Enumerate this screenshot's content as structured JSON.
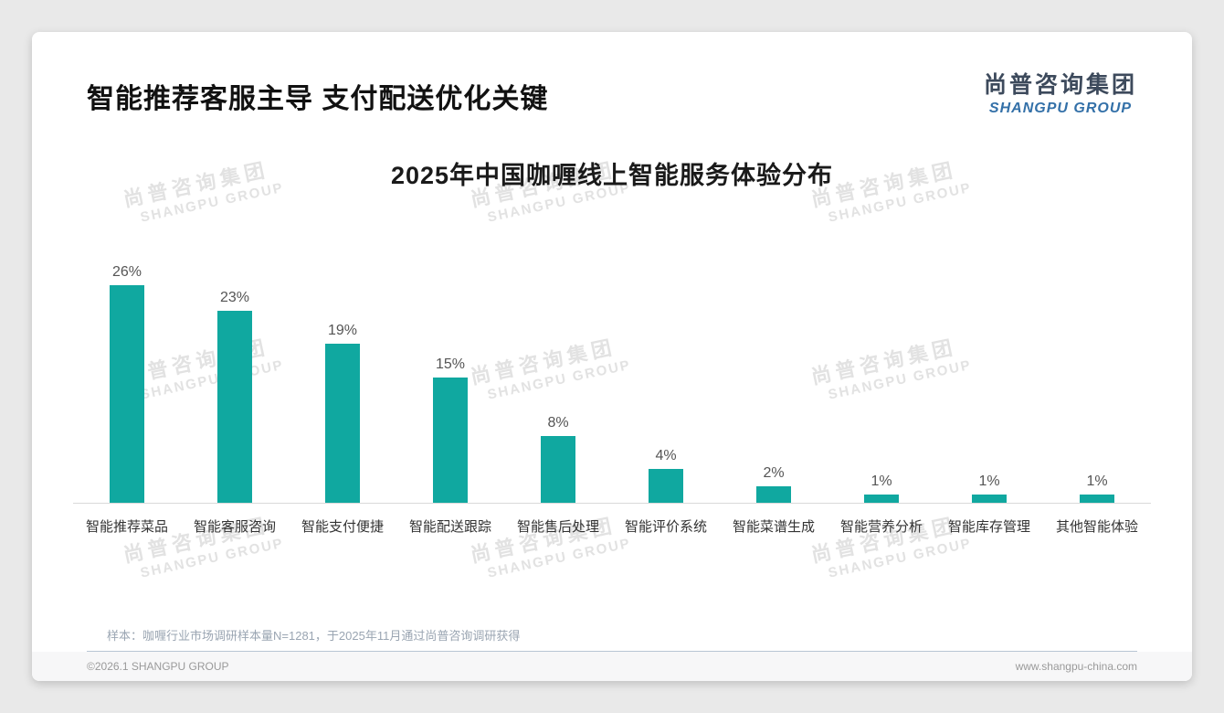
{
  "page": {
    "title": "智能推荐客服主导 支付配送优化关键",
    "logo": {
      "zh": "尚普咨询集团",
      "en": "SHANGPU GROUP"
    },
    "watermark": {
      "zh": "尚普咨询集团",
      "en": "SHANGPU GROUP"
    },
    "note": "样本：咖喱行业市场调研样本量N=1281，于2025年11月通过尚普咨询调研获得",
    "footer": {
      "left": "©2026.1 SHANGPU GROUP",
      "right": "www.shangpu-china.com"
    }
  },
  "chart_data": {
    "type": "bar",
    "title": "2025年中国咖喱线上智能服务体验分布",
    "categories": [
      "智能推荐菜品",
      "智能客服咨询",
      "智能支付便捷",
      "智能配送跟踪",
      "智能售后处理",
      "智能评价系统",
      "智能菜谱生成",
      "智能营养分析",
      "智能库存管理",
      "其他智能体验"
    ],
    "values": [
      26,
      23,
      19,
      15,
      8,
      4,
      2,
      1,
      1,
      1
    ],
    "value_labels": [
      "26%",
      "23%",
      "19%",
      "15%",
      "8%",
      "4%",
      "2%",
      "1%",
      "1%",
      "1%"
    ],
    "unit": "%",
    "ylim": [
      0,
      28
    ],
    "grid": false,
    "legend": false,
    "bar_color": "#10a8a0",
    "xlabel": "",
    "ylabel": ""
  },
  "colors": {
    "bar": "#10a8a0",
    "logo_zh": "#3d4a5c",
    "logo_en": "#3370a8",
    "axis_line": "#d9d9d9",
    "watermark": "#e2e2e2",
    "note_text": "#9aa5b2"
  }
}
